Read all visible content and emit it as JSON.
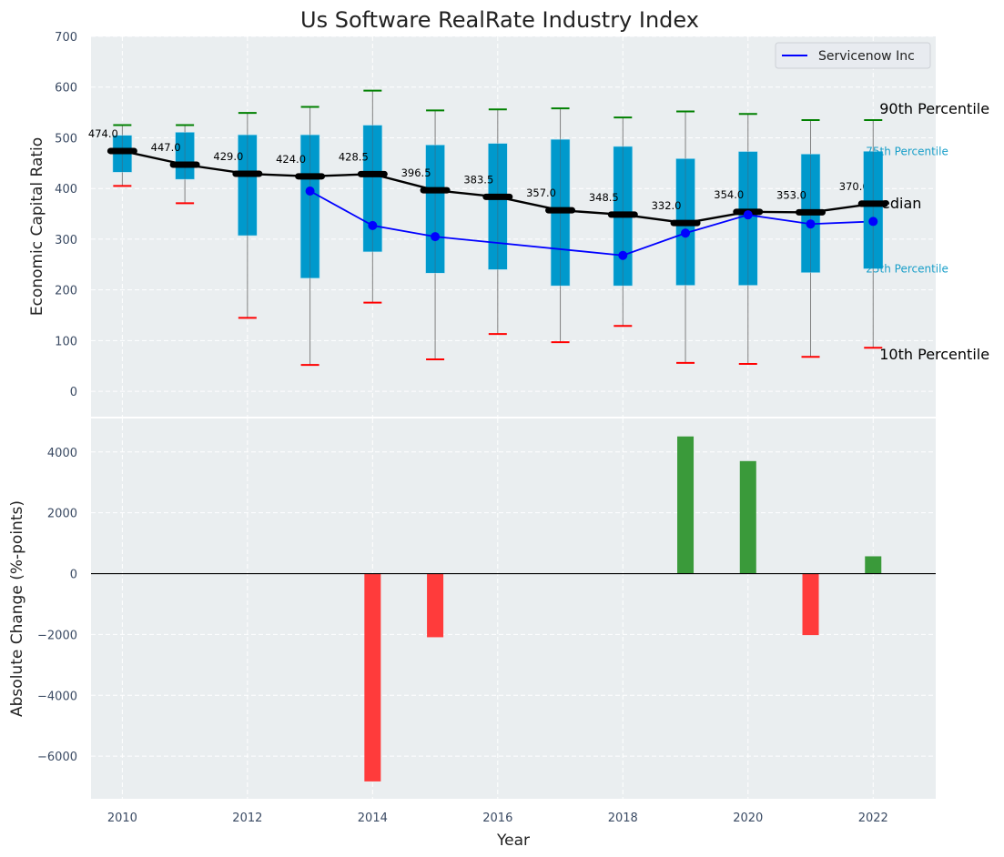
{
  "chart_data": [
    {
      "type": "box",
      "title": "Us Software RealRate Industry Index",
      "xlabel": "",
      "ylabel": "Economic Capital Ratio",
      "xlim": [
        2009.5,
        2023
      ],
      "ylim": [
        -50,
        700
      ],
      "yticks": [
        0,
        100,
        200,
        300,
        400,
        500,
        600,
        700
      ],
      "xticks": [
        2010,
        2012,
        2014,
        2016,
        2018,
        2020,
        2022
      ],
      "grid": true,
      "years": [
        2010,
        2011,
        2012,
        2013,
        2014,
        2015,
        2016,
        2017,
        2018,
        2019,
        2020,
        2021,
        2022
      ],
      "p90": [
        525,
        525,
        549,
        561,
        593,
        554,
        556,
        558,
        540,
        552,
        547,
        535,
        535
      ],
      "p75": [
        505,
        511,
        506,
        506,
        525,
        486,
        489,
        497,
        483,
        459,
        473,
        468,
        473
      ],
      "median": [
        474.0,
        447.0,
        429.0,
        424.0,
        428.5,
        396.5,
        383.5,
        357.0,
        348.5,
        332.0,
        354.0,
        353.0,
        370.0
      ],
      "median_labels": [
        "474.0",
        "447.0",
        "429.0",
        "424.0",
        "428.5",
        "396.5",
        "383.5",
        "357.0",
        "348.5",
        "332.0",
        "354.0",
        "353.0",
        "370.0"
      ],
      "p25": [
        432,
        418,
        307,
        223,
        275,
        233,
        240,
        208,
        208,
        209,
        209,
        234,
        242
      ],
      "p10": [
        405,
        371,
        145,
        52,
        175,
        63,
        113,
        97,
        129,
        56,
        54,
        68,
        86
      ],
      "series": [
        {
          "name": "Servicenow Inc",
          "color": "#0000ff",
          "points": [
            {
              "x": 2013,
              "y": 395
            },
            {
              "x": 2014,
              "y": 327
            },
            {
              "x": 2015,
              "y": 305
            },
            {
              "x": 2018,
              "y": 268
            },
            {
              "x": 2019,
              "y": 312
            },
            {
              "x": 2020,
              "y": 348
            },
            {
              "x": 2021,
              "y": 330
            },
            {
              "x": 2022,
              "y": 335
            }
          ]
        }
      ],
      "annotations": [
        {
          "text": "90th Percentile",
          "anchor": "p90",
          "color": "#000000"
        },
        {
          "text": "75th Percentile",
          "anchor": "p75",
          "color": "#1a9fc9"
        },
        {
          "text": "Median",
          "anchor": "median",
          "color": "#000000"
        },
        {
          "text": "25th Percentile",
          "anchor": "p25",
          "color": "#1a9fc9"
        },
        {
          "text": "10th Percentile",
          "anchor": "p10",
          "color": "#000000"
        }
      ],
      "legend": {
        "position": "top-right",
        "entries": [
          "Servicenow Inc"
        ]
      },
      "colors": {
        "box": "#0099cc",
        "p90_whisker": "#008000",
        "p10_whisker": "#ff0000",
        "median_line": "#000000",
        "whisker_line": "#808080",
        "background": "#eaeef0"
      }
    },
    {
      "type": "bar",
      "title": "",
      "xlabel": "Year",
      "ylabel": "Absolute Change (%-points)",
      "xlim": [
        2009.5,
        2023
      ],
      "ylim": [
        -7400,
        5100
      ],
      "yticks": [
        -6000,
        -4000,
        -2000,
        0,
        2000,
        4000
      ],
      "ytick_labels": [
        "−6000",
        "−4000",
        "−2000",
        "0",
        "2000",
        "4000"
      ],
      "xticks": [
        2010,
        2012,
        2014,
        2016,
        2018,
        2020,
        2022
      ],
      "grid": true,
      "categories": [
        2014,
        2015,
        2019,
        2020,
        2021,
        2022
      ],
      "values": [
        -6830,
        -2090,
        4510,
        3700,
        -2020,
        570
      ],
      "colors": {
        "positive": "#3a9a3a",
        "negative": "#ff3b3b",
        "zero_line": "#000000",
        "background": "#eaeef0"
      }
    }
  ]
}
